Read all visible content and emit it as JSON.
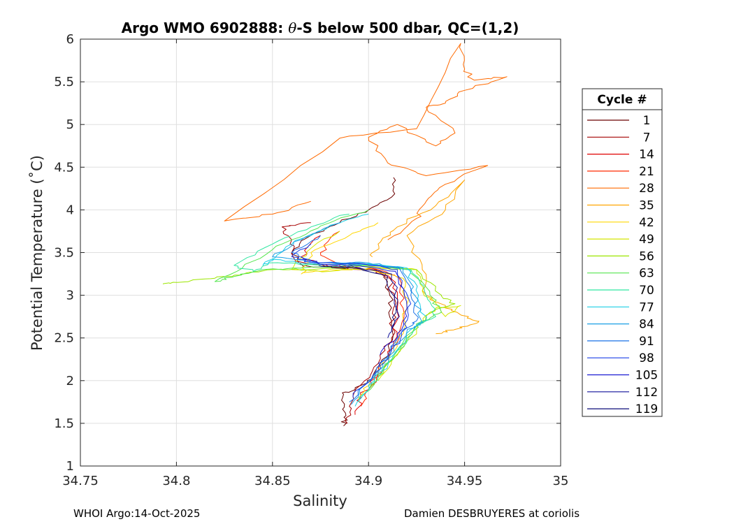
{
  "chart_data": {
    "type": "line",
    "title_prefix": "Argo WMO 6902888: ",
    "title_symbol": "θ",
    "title_suffix": "-S below 500 dbar,  QC=(1,2)",
    "xlabel": "Salinity",
    "ylabel": "Potential Temperature (˚C)",
    "xlim": [
      34.75,
      35
    ],
    "ylim": [
      1,
      6
    ],
    "xticks": [
      "34.75",
      "34.8",
      "34.85",
      "34.9",
      "34.95",
      "35"
    ],
    "yticks": [
      "1",
      "1.5",
      "2",
      "2.5",
      "3",
      "3.5",
      "4",
      "4.5",
      "5",
      "5.5",
      "6"
    ],
    "grid": true,
    "legend": {
      "title": "Cycle #",
      "placement": "outside-right",
      "entries": [
        {
          "label": "1",
          "color": "#6b0000"
        },
        {
          "label": "7",
          "color": "#a50000"
        },
        {
          "label": "14",
          "color": "#e00000"
        },
        {
          "label": "21",
          "color": "#ff2a00"
        },
        {
          "label": "28",
          "color": "#ff6a00"
        },
        {
          "label": "35",
          "color": "#ffa500"
        },
        {
          "label": "42",
          "color": "#ffd700"
        },
        {
          "label": "49",
          "color": "#d4e600"
        },
        {
          "label": "56",
          "color": "#9be600"
        },
        {
          "label": "63",
          "color": "#55e64f"
        },
        {
          "label": "70",
          "color": "#2ee6a0"
        },
        {
          "label": "77",
          "color": "#1ccfe6"
        },
        {
          "label": "84",
          "color": "#1aa0e6"
        },
        {
          "label": "91",
          "color": "#1a70e6"
        },
        {
          "label": "98",
          "color": "#1a3ee6"
        },
        {
          "label": "105",
          "color": "#1a1ad2"
        },
        {
          "label": "112",
          "color": "#10109a"
        },
        {
          "label": "119",
          "color": "#0a0a78"
        }
      ]
    },
    "series": [
      {
        "name": "1",
        "color": "#6b0000",
        "points": [
          [
            34.887,
            1.47
          ],
          [
            34.888,
            1.62
          ],
          [
            34.887,
            1.84
          ],
          [
            34.893,
            1.9
          ],
          [
            34.902,
            2.05
          ],
          [
            34.911,
            2.35
          ],
          [
            34.912,
            2.7
          ],
          [
            34.911,
            3.0
          ],
          [
            34.909,
            3.25
          ],
          [
            34.9,
            3.3
          ],
          [
            34.88,
            3.33
          ],
          [
            34.866,
            3.34
          ],
          [
            34.86,
            3.5
          ],
          [
            34.87,
            3.7
          ],
          [
            34.885,
            3.85
          ],
          [
            34.9,
            4.0
          ],
          [
            34.912,
            4.15
          ],
          [
            34.913,
            4.38
          ]
        ]
      },
      {
        "name": "7",
        "color": "#a50000",
        "points": [
          [
            34.889,
            1.5
          ],
          [
            34.89,
            1.7
          ],
          [
            34.896,
            1.95
          ],
          [
            34.905,
            2.2
          ],
          [
            34.912,
            2.5
          ],
          [
            34.913,
            2.85
          ],
          [
            34.911,
            3.2
          ],
          [
            34.902,
            3.3
          ],
          [
            34.88,
            3.33
          ],
          [
            34.862,
            3.4
          ],
          [
            34.86,
            3.65
          ],
          [
            34.855,
            3.8
          ],
          [
            34.87,
            3.85
          ]
        ]
      },
      {
        "name": "14",
        "color": "#e00000",
        "points": [
          [
            34.893,
            1.6
          ],
          [
            34.896,
            1.8
          ],
          [
            34.905,
            2.1
          ],
          [
            34.913,
            2.45
          ],
          [
            34.915,
            2.8
          ],
          [
            34.914,
            3.15
          ],
          [
            34.904,
            3.3
          ],
          [
            34.88,
            3.33
          ],
          [
            34.865,
            3.45
          ],
          [
            34.875,
            3.7
          ]
        ]
      },
      {
        "name": "21",
        "color": "#ff2a00",
        "points": [
          [
            34.896,
            1.7
          ],
          [
            34.9,
            1.9
          ],
          [
            34.908,
            2.15
          ],
          [
            34.916,
            2.5
          ],
          [
            34.918,
            2.85
          ],
          [
            34.916,
            3.2
          ],
          [
            34.905,
            3.3
          ],
          [
            34.885,
            3.34
          ],
          [
            34.875,
            3.5
          ],
          [
            34.885,
            3.75
          ]
        ]
      },
      {
        "name": "28",
        "color": "#ff6a00",
        "points": [
          [
            34.91,
            3.65
          ],
          [
            34.925,
            3.9
          ],
          [
            34.93,
            4.1
          ],
          [
            34.94,
            4.3
          ],
          [
            34.962,
            4.52
          ],
          [
            34.93,
            4.4
          ],
          [
            34.91,
            4.55
          ],
          [
            34.9,
            4.85
          ],
          [
            34.915,
            5.0
          ],
          [
            34.935,
            4.75
          ],
          [
            34.945,
            4.9
          ],
          [
            34.93,
            5.2
          ],
          [
            34.94,
            5.25
          ],
          [
            34.95,
            5.4
          ],
          [
            34.972,
            5.56
          ],
          [
            34.955,
            5.52
          ],
          [
            34.95,
            5.65
          ],
          [
            34.948,
            5.95
          ],
          [
            34.925,
            4.95
          ],
          [
            34.885,
            4.84
          ],
          [
            34.825,
            3.87
          ],
          [
            34.85,
            3.95
          ],
          [
            34.87,
            4.1
          ]
        ]
      },
      {
        "name": "35",
        "color": "#ffa500",
        "points": [
          [
            34.902,
            3.45
          ],
          [
            34.905,
            3.6
          ],
          [
            34.915,
            3.8
          ],
          [
            34.935,
            4.05
          ],
          [
            34.95,
            4.35
          ],
          [
            34.94,
            4.0
          ],
          [
            34.92,
            3.7
          ],
          [
            34.928,
            3.3
          ],
          [
            34.93,
            3.0
          ],
          [
            34.94,
            2.85
          ],
          [
            34.952,
            2.75
          ],
          [
            34.957,
            2.68
          ],
          [
            34.945,
            2.6
          ],
          [
            34.935,
            2.55
          ]
        ]
      },
      {
        "name": "42",
        "color": "#ffd700",
        "points": [
          [
            34.895,
            1.75
          ],
          [
            34.9,
            2.0
          ],
          [
            34.91,
            2.25
          ],
          [
            34.918,
            2.55
          ],
          [
            34.92,
            2.9
          ],
          [
            34.918,
            3.2
          ],
          [
            34.9,
            3.3
          ],
          [
            34.88,
            3.3
          ],
          [
            34.865,
            3.25
          ],
          [
            34.87,
            3.5
          ],
          [
            34.89,
            3.7
          ],
          [
            34.905,
            3.85
          ]
        ]
      },
      {
        "name": "49",
        "color": "#d4e600",
        "points": [
          [
            34.905,
            2.0
          ],
          [
            34.915,
            2.3
          ],
          [
            34.925,
            2.6
          ],
          [
            34.935,
            2.85
          ],
          [
            34.948,
            2.88
          ],
          [
            34.94,
            2.75
          ],
          [
            34.928,
            3.05
          ],
          [
            34.925,
            3.3
          ],
          [
            34.9,
            3.32
          ],
          [
            34.88,
            3.28
          ],
          [
            34.86,
            3.3
          ],
          [
            34.87,
            3.55
          ],
          [
            34.885,
            3.75
          ]
        ]
      },
      {
        "name": "56",
        "color": "#9be600",
        "points": [
          [
            34.9,
            1.9
          ],
          [
            34.91,
            2.2
          ],
          [
            34.92,
            2.5
          ],
          [
            34.932,
            2.8
          ],
          [
            34.945,
            2.9
          ],
          [
            34.938,
            3.0
          ],
          [
            34.925,
            3.3
          ],
          [
            34.9,
            3.34
          ],
          [
            34.87,
            3.3
          ],
          [
            34.85,
            3.3
          ],
          [
            34.835,
            3.25
          ],
          [
            34.82,
            3.2
          ],
          [
            34.8,
            3.15
          ],
          [
            34.793,
            3.13
          ]
        ]
      },
      {
        "name": "63",
        "color": "#55e64f",
        "points": [
          [
            34.898,
            1.85
          ],
          [
            34.908,
            2.15
          ],
          [
            34.918,
            2.45
          ],
          [
            34.928,
            2.7
          ],
          [
            34.938,
            2.8
          ],
          [
            34.932,
            3.0
          ],
          [
            34.922,
            3.3
          ],
          [
            34.9,
            3.35
          ],
          [
            34.87,
            3.33
          ],
          [
            34.845,
            3.3
          ],
          [
            34.83,
            3.22
          ],
          [
            34.82,
            3.16
          ],
          [
            34.84,
            3.4
          ],
          [
            34.86,
            3.65
          ],
          [
            34.88,
            3.85
          ],
          [
            34.9,
            4.0
          ]
        ]
      },
      {
        "name": "70",
        "color": "#2ee6a0",
        "points": [
          [
            34.895,
            1.75
          ],
          [
            34.905,
            2.05
          ],
          [
            34.915,
            2.35
          ],
          [
            34.925,
            2.65
          ],
          [
            34.935,
            2.75
          ],
          [
            34.93,
            3.0
          ],
          [
            34.922,
            3.3
          ],
          [
            34.9,
            3.36
          ],
          [
            34.87,
            3.36
          ],
          [
            34.848,
            3.38
          ],
          [
            34.84,
            3.28
          ],
          [
            34.83,
            3.35
          ],
          [
            34.85,
            3.6
          ],
          [
            34.87,
            3.8
          ],
          [
            34.89,
            3.95
          ]
        ]
      },
      {
        "name": "77",
        "color": "#1ccfe6",
        "points": [
          [
            34.893,
            1.7
          ],
          [
            34.903,
            2.0
          ],
          [
            34.913,
            2.3
          ],
          [
            34.922,
            2.6
          ],
          [
            34.93,
            2.7
          ],
          [
            34.926,
            3.0
          ],
          [
            34.92,
            3.32
          ],
          [
            34.9,
            3.37
          ],
          [
            34.87,
            3.37
          ],
          [
            34.85,
            3.42
          ],
          [
            34.845,
            3.35
          ],
          [
            34.86,
            3.6
          ],
          [
            34.88,
            3.82
          ],
          [
            34.9,
            3.95
          ]
        ]
      },
      {
        "name": "84",
        "color": "#1aa0e6",
        "points": [
          [
            34.891,
            1.72
          ],
          [
            34.9,
            1.98
          ],
          [
            34.91,
            2.28
          ],
          [
            34.92,
            2.58
          ],
          [
            34.928,
            2.68
          ],
          [
            34.924,
            3.0
          ],
          [
            34.918,
            3.32
          ],
          [
            34.9,
            3.38
          ],
          [
            34.875,
            3.38
          ],
          [
            34.85,
            3.45
          ],
          [
            34.865,
            3.65
          ],
          [
            34.885,
            3.85
          ]
        ]
      },
      {
        "name": "91",
        "color": "#1a70e6",
        "points": [
          [
            34.89,
            1.75
          ],
          [
            34.9,
            2.0
          ],
          [
            34.91,
            2.3
          ],
          [
            34.918,
            2.6
          ],
          [
            34.925,
            2.7
          ],
          [
            34.922,
            3.0
          ],
          [
            34.916,
            3.32
          ],
          [
            34.898,
            3.37
          ],
          [
            34.875,
            3.38
          ],
          [
            34.86,
            3.5
          ],
          [
            34.875,
            3.7
          ]
        ]
      },
      {
        "name": "98",
        "color": "#1a3ee6",
        "points": [
          [
            34.892,
            1.8
          ],
          [
            34.902,
            2.05
          ],
          [
            34.912,
            2.35
          ],
          [
            34.92,
            2.62
          ],
          [
            34.922,
            2.9
          ],
          [
            34.915,
            3.3
          ],
          [
            34.895,
            3.37
          ],
          [
            34.872,
            3.38
          ],
          [
            34.86,
            3.45
          ],
          [
            34.87,
            3.6
          ]
        ]
      },
      {
        "name": "105",
        "color": "#1a1ad2",
        "points": [
          [
            34.906,
            2.3
          ],
          [
            34.915,
            2.55
          ],
          [
            34.92,
            2.85
          ],
          [
            34.914,
            3.28
          ],
          [
            34.895,
            3.35
          ],
          [
            34.875,
            3.36
          ],
          [
            34.865,
            3.45
          ]
        ]
      },
      {
        "name": "112",
        "color": "#10109a",
        "points": [
          [
            34.91,
            2.5
          ],
          [
            34.916,
            2.75
          ],
          [
            34.912,
            3.25
          ],
          [
            34.893,
            3.33
          ],
          [
            34.874,
            3.35
          ]
        ]
      },
      {
        "name": "119",
        "color": "#0a0a78",
        "points": [
          [
            34.912,
            2.6
          ],
          [
            34.915,
            2.9
          ],
          [
            34.91,
            3.22
          ],
          [
            34.892,
            3.32
          ],
          [
            34.876,
            3.34
          ]
        ]
      }
    ]
  },
  "footer": {
    "left": "WHOI Argo:14-Oct-2025",
    "right": "Damien DESBRUYERES at coriolis"
  }
}
